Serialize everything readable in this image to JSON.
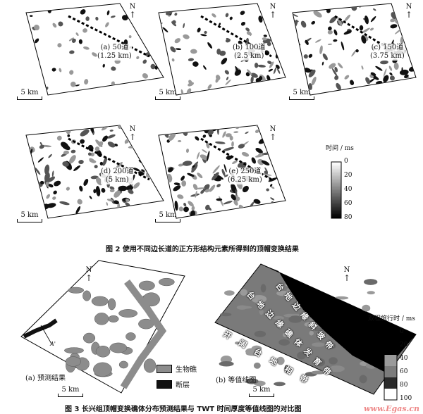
{
  "figure2": {
    "caption": "图 2 使用不同边长道的正方形结构元素所得到的顶帽变换结果",
    "panels": [
      {
        "label": "(a) 50道",
        "sub": "(1.25 km)",
        "density": 0.25
      },
      {
        "label": "(b) 100道",
        "sub": "(2.5 km)",
        "density": 0.4
      },
      {
        "label": "(c) 150道",
        "sub": "(3.75 km)",
        "density": 0.5
      },
      {
        "label": "(d) 200道",
        "sub": "(5 km)",
        "density": 0.55
      },
      {
        "label": "(e) 250道",
        "sub": "(6.25 km)",
        "density": 0.6
      }
    ],
    "scale": "5 km",
    "north": "N",
    "colorbar": {
      "title": "时间 / ms",
      "ticks": [
        "0",
        "20",
        "40",
        "60",
        "80"
      ]
    }
  },
  "figure3": {
    "caption": "图 3 长兴组顶帽变换礁体分布预测结果与 TWT 时间厚度等值线图的对比图",
    "panel_a": {
      "label": "(a) 预测结果",
      "section_start": "A",
      "section_end": "A'"
    },
    "panel_b": {
      "label": "(b) 等值线图",
      "zones": [
        "台地边缘斜坡带",
        "台地边缘礁体发育带",
        "开阔台地相带"
      ]
    },
    "legend": [
      {
        "label": "生物礁",
        "color": "#8c8c8c"
      },
      {
        "label": "断层",
        "color": "#111111"
      }
    ],
    "scale": "5 km",
    "north": "N",
    "colorbar": {
      "title": "双程旅行时 / ms",
      "ticks": [
        "0",
        "20",
        "40",
        "60",
        "80",
        "100"
      ]
    }
  },
  "watermark": "www.Egas.cn"
}
